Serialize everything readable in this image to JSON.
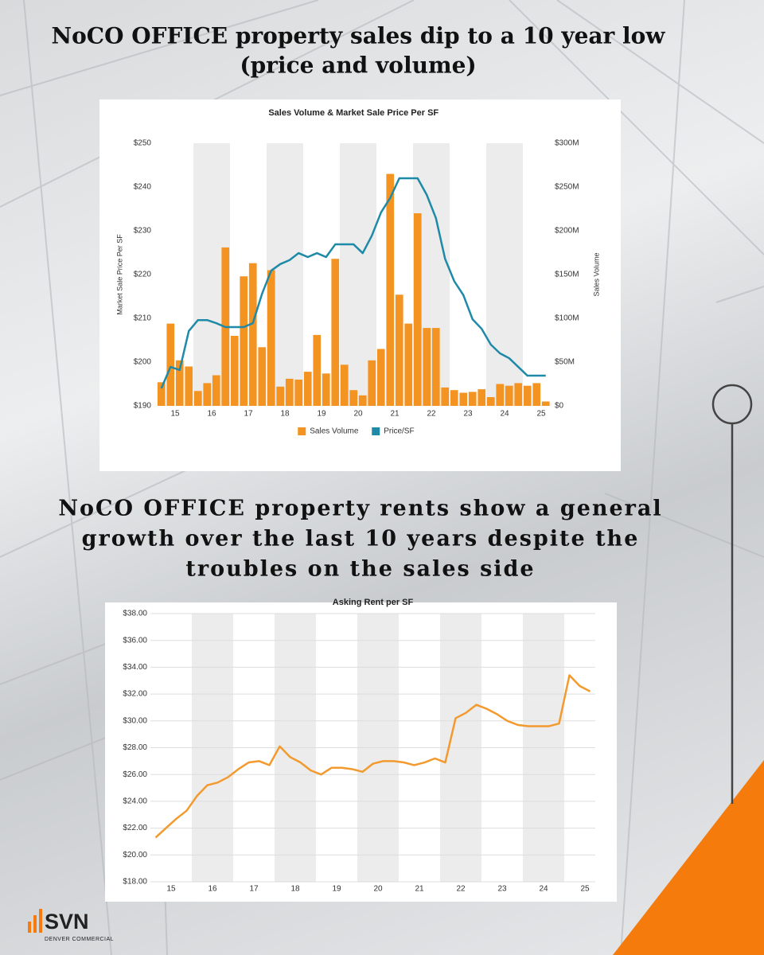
{
  "header": {
    "title_lines": [
      "NoCO OFFICE property sales dip to a 10 year low",
      "(price and volume)"
    ],
    "subtitle_lines": [
      "NoCO OFFICE property rents show a general",
      "growth over the last 10 years despite the",
      "troubles on the sales side"
    ]
  },
  "logo": {
    "name": "SVN",
    "tagline": "DENVER COMMERCIAL"
  },
  "chart_data": [
    {
      "type": "bar",
      "title": "Sales Volume & Market Sale Price Per SF",
      "y_label": "Market Sale Price Per SF",
      "y2_label": "Sales Volume",
      "categories": [
        null,
        "15",
        null,
        null,
        null,
        "16",
        null,
        null,
        null,
        "17",
        null,
        null,
        null,
        "18",
        null,
        null,
        null,
        "19",
        null,
        null,
        null,
        "20",
        null,
        null,
        null,
        "21",
        null,
        null,
        null,
        "22",
        null,
        null,
        null,
        "23",
        null,
        null,
        null,
        "24",
        null,
        null,
        null,
        "25",
        null
      ],
      "series": [
        {
          "name": "Sales Volume",
          "type": "bar",
          "axis": "y2",
          "color": "#f39322",
          "values": [
            27,
            94,
            52,
            45,
            17,
            26,
            35,
            181,
            80,
            148,
            163,
            67,
            155,
            22,
            31,
            30,
            39,
            81,
            37,
            168,
            47,
            18,
            12,
            52,
            65,
            265,
            127,
            94,
            220,
            89,
            89,
            21,
            18,
            15,
            16,
            19,
            10,
            25,
            23,
            26,
            23,
            26,
            5
          ]
        },
        {
          "name": "Price/SF",
          "type": "line",
          "color": "#1f8aa8",
          "values": [
            194.0,
            198.9,
            198.2,
            207.1,
            209.6,
            209.6,
            208.9,
            208.0,
            208.0,
            208.0,
            208.9,
            215.6,
            220.9,
            222.4,
            223.3,
            224.9,
            224.0,
            224.9,
            224.0,
            226.9,
            226.9,
            226.9,
            224.9,
            228.9,
            234.2,
            237.5,
            242.0,
            242.0,
            242.0,
            238.2,
            232.9,
            223.6,
            218.5,
            215.3,
            209.8,
            207.6,
            204.0,
            202.0,
            200.9,
            198.9,
            196.9,
            196.9,
            196.9
          ]
        }
      ],
      "ylim": [
        190,
        250
      ],
      "yticks": [
        {
          "value": 190,
          "label": "$190"
        },
        {
          "value": 200,
          "label": "$200"
        },
        {
          "value": 210,
          "label": "$210"
        },
        {
          "value": 220,
          "label": "$220"
        },
        {
          "value": 230,
          "label": "$230"
        },
        {
          "value": 240,
          "label": "$240"
        },
        {
          "value": 250,
          "label": "$250"
        }
      ],
      "y2lim": [
        0,
        300
      ],
      "y2ticks": [
        {
          "value": 0,
          "label": "$0"
        },
        {
          "value": 50,
          "label": "$50M"
        },
        {
          "value": 100,
          "label": "$100M"
        },
        {
          "value": 150,
          "label": "$150M"
        },
        {
          "value": 200,
          "label": "$200M"
        },
        {
          "value": 250,
          "label": "$250M"
        },
        {
          "value": 300,
          "label": "$300M"
        }
      ],
      "grid": false,
      "legend": "bottom"
    },
    {
      "type": "line",
      "title": "Asking Rent per SF",
      "categories": [
        null,
        "15",
        null,
        null,
        null,
        "16",
        null,
        null,
        null,
        "17",
        null,
        null,
        null,
        "18",
        null,
        null,
        null,
        "19",
        null,
        null,
        null,
        "20",
        null,
        null,
        null,
        "21",
        null,
        null,
        null,
        "22",
        null,
        null,
        null,
        "23",
        null,
        null,
        null,
        "24",
        null,
        null,
        null,
        "25",
        null
      ],
      "values": [
        21.3,
        22.0,
        22.7,
        23.3,
        24.4,
        25.2,
        25.4,
        25.8,
        26.4,
        26.9,
        27.0,
        26.7,
        28.1,
        27.3,
        26.9,
        26.3,
        26.0,
        26.5,
        26.5,
        26.4,
        26.2,
        26.8,
        27.0,
        27.0,
        26.9,
        26.7,
        26.9,
        27.2,
        26.9,
        30.2,
        30.6,
        31.2,
        30.9,
        30.5,
        30.0,
        29.7,
        29.6,
        29.6,
        29.6,
        29.8,
        33.4,
        32.6,
        32.2
      ],
      "color": "#f39a2e",
      "ylim": [
        18,
        38
      ],
      "yticks": [
        {
          "value": 18,
          "label": "$18.00"
        },
        {
          "value": 20,
          "label": "$20.00"
        },
        {
          "value": 22,
          "label": "$22.00"
        },
        {
          "value": 24,
          "label": "$24.00"
        },
        {
          "value": 26,
          "label": "$26.00"
        },
        {
          "value": 28,
          "label": "$28.00"
        },
        {
          "value": 30,
          "label": "$30.00"
        },
        {
          "value": 32,
          "label": "$32.00"
        },
        {
          "value": 34,
          "label": "$34.00"
        },
        {
          "value": 36,
          "label": "$36.00"
        },
        {
          "value": 38,
          "label": "$38.00"
        }
      ],
      "grid": true
    }
  ]
}
